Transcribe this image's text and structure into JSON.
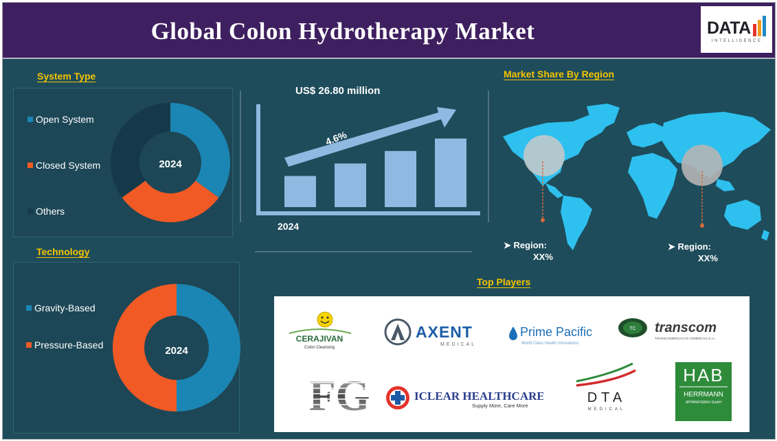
{
  "header": {
    "title": "Global Colon Hydrotherapy Market"
  },
  "logo": {
    "name": "DATA",
    "tagline": "INTELLIGENCE"
  },
  "system_type": {
    "title": "System Type",
    "center_label": "2024",
    "legend": [
      {
        "label": "Open System",
        "color": "#1b86b3"
      },
      {
        "label": "Closed System",
        "color": "#f15a24"
      },
      {
        "label": "Others",
        "color": "#16394a"
      }
    ]
  },
  "technology": {
    "title": "Technology",
    "center_label": "2024",
    "legend": [
      {
        "label": "Gravity-Based",
        "color": "#1b86b3"
      },
      {
        "label": "Pressure-Based",
        "color": "#f15a24"
      }
    ]
  },
  "growth": {
    "value_label": "US$ 26.80 million",
    "cagr_label": "4.6%",
    "year_label": "2024",
    "bar_color": "#8fb9e0"
  },
  "region": {
    "title": "Market Share By Region",
    "markers": [
      {
        "region_label": "Region:",
        "value_label": "XX%"
      },
      {
        "region_label": "Region:",
        "value_label": "XX%"
      }
    ],
    "map_color": "#2ec0ee"
  },
  "top_players": {
    "title": "Top Players",
    "logos": [
      {
        "name": "CERAJIVAN",
        "tagline": "Colon Cleansing"
      },
      {
        "name": "AXENT",
        "tagline": "MEDICAL"
      },
      {
        "name": "Prime Pacific",
        "tagline": "World Class Health Innovations"
      },
      {
        "name": "transcom",
        "tagline": "TRANSCOMERCIACAO COMERCIAL E.I.L."
      },
      {
        "name": "FG",
        "tagline": ""
      },
      {
        "name": "ICLEAR HEALTHCARE",
        "tagline": "Supply More, Care More"
      },
      {
        "name": "DTA",
        "tagline": "MEDICAL"
      },
      {
        "name": "HAB",
        "tagline": "HERRMANN",
        "subtag": "APPARATEBAU GmbH"
      }
    ]
  },
  "chart_data": [
    {
      "type": "pie",
      "title": "System Type",
      "categories": [
        "Open System",
        "Closed System",
        "Others"
      ],
      "values": [
        35,
        30,
        35
      ],
      "center_label": "2024"
    },
    {
      "type": "pie",
      "title": "Technology",
      "categories": [
        "Gravity-Based",
        "Pressure-Based"
      ],
      "values": [
        50,
        50
      ],
      "center_label": "2024"
    },
    {
      "type": "bar",
      "title": "",
      "categories": [
        "",
        "",
        "",
        ""
      ],
      "values": [
        1,
        1.4,
        1.8,
        2.2
      ],
      "annotations": [
        "US$ 26.80 million",
        "4.6%",
        "2024"
      ]
    }
  ]
}
